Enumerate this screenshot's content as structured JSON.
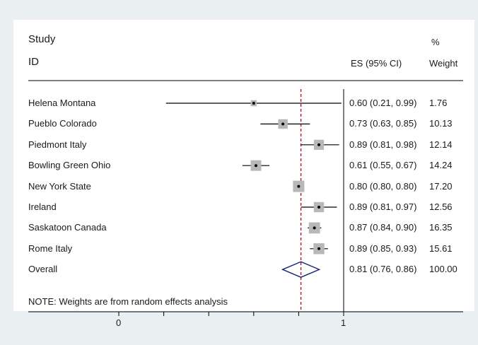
{
  "chart_data": {
    "type": "forest",
    "headers": {
      "study": "Study",
      "id": "ID",
      "es": "ES (95% CI)",
      "pct": "%",
      "weight": "Weight"
    },
    "studies": [
      {
        "name": "Helena Montana",
        "es": 0.6,
        "lo": 0.21,
        "hi": 0.99,
        "weight": 1.76,
        "label": "0.60 (0.21, 0.99)",
        "weight_label": "1.76"
      },
      {
        "name": "Pueblo Colorado",
        "es": 0.73,
        "lo": 0.63,
        "hi": 0.85,
        "weight": 10.13,
        "label": "0.73 (0.63, 0.85)",
        "weight_label": "10.13"
      },
      {
        "name": "Piedmont Italy",
        "es": 0.89,
        "lo": 0.81,
        "hi": 0.98,
        "weight": 12.14,
        "label": "0.89 (0.81, 0.98)",
        "weight_label": "12.14"
      },
      {
        "name": "Bowling Green Ohio",
        "es": 0.61,
        "lo": 0.55,
        "hi": 0.67,
        "weight": 14.24,
        "label": "0.61 (0.55, 0.67)",
        "weight_label": "14.24"
      },
      {
        "name": "New York State",
        "es": 0.8,
        "lo": 0.8,
        "hi": 0.8,
        "weight": 17.2,
        "label": "0.80 (0.80, 0.80)",
        "weight_label": "17.20"
      },
      {
        "name": "Ireland",
        "es": 0.89,
        "lo": 0.81,
        "hi": 0.97,
        "weight": 12.56,
        "label": "0.89 (0.81, 0.97)",
        "weight_label": "12.56"
      },
      {
        "name": "Saskatoon Canada",
        "es": 0.87,
        "lo": 0.84,
        "hi": 0.9,
        "weight": 16.35,
        "label": "0.87 (0.84, 0.90)",
        "weight_label": "16.35"
      },
      {
        "name": "Rome Italy",
        "es": 0.89,
        "lo": 0.85,
        "hi": 0.93,
        "weight": 15.61,
        "label": "0.89 (0.85, 0.93)",
        "weight_label": "15.61"
      }
    ],
    "overall": {
      "name": "Overall",
      "es": 0.81,
      "lo": 0.76,
      "hi": 0.86,
      "label": "0.81 (0.76, 0.86)",
      "weight_label": "100.00"
    },
    "note": "NOTE: Weights are from random effects analysis",
    "xlim": [
      0,
      1
    ],
    "xticks": [
      {
        "value": 0,
        "label": "0"
      },
      {
        "value": 1,
        "label": "1"
      }
    ],
    "minor_ticks": [
      0.2,
      0.4,
      0.6,
      0.8
    ],
    "null_line": 1,
    "colors": {
      "box": "#b8b8b8",
      "line": "#000000",
      "overall_diamond": "#1a237e",
      "overall_line": "#b0182a",
      "background": "#eaf0f2",
      "panel": "#ffffff"
    }
  }
}
